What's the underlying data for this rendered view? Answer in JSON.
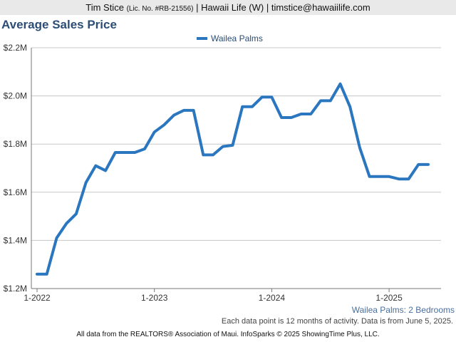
{
  "header": {
    "name": "Tim Stice",
    "license": "(Lic. No. #RB-21556)",
    "rest": "| Hawaii Life (W) | timstice@hawaiilife.com"
  },
  "chart_data": {
    "type": "line",
    "title": "Average Sales Price",
    "xlabel": "",
    "ylabel": "",
    "ylim": [
      1200000,
      2200000
    ],
    "yticks": [
      1200000,
      1400000,
      1600000,
      1800000,
      2000000,
      2200000
    ],
    "ytick_labels": [
      "$1.2M",
      "$1.4M",
      "$1.6M",
      "$1.8M",
      "$2.0M",
      "$2.2M"
    ],
    "xtick_labels": [
      "1-2022",
      "1-2023",
      "1-2024",
      "1-2025"
    ],
    "xtick_index": [
      0,
      12,
      24,
      36
    ],
    "grid": true,
    "legend": "top-center",
    "color": "#2a77c0",
    "x": [
      "1-2022",
      "2-2022",
      "3-2022",
      "4-2022",
      "5-2022",
      "6-2022",
      "7-2022",
      "8-2022",
      "9-2022",
      "10-2022",
      "11-2022",
      "12-2022",
      "1-2023",
      "2-2023",
      "3-2023",
      "4-2023",
      "5-2023",
      "6-2023",
      "7-2023",
      "8-2023",
      "9-2023",
      "10-2023",
      "11-2023",
      "12-2023",
      "1-2024",
      "2-2024",
      "3-2024",
      "4-2024",
      "5-2024",
      "6-2024",
      "7-2024",
      "8-2024",
      "9-2024",
      "10-2024",
      "11-2024",
      "12-2024",
      "1-2025",
      "2-2025",
      "3-2025",
      "4-2025",
      "5-2025"
    ],
    "series": [
      {
        "name": "Wailea Palms",
        "values": [
          1260000,
          1260000,
          1410000,
          1470000,
          1510000,
          1640000,
          1710000,
          1690000,
          1765000,
          1765000,
          1765000,
          1780000,
          1850000,
          1880000,
          1920000,
          1940000,
          1940000,
          1755000,
          1755000,
          1790000,
          1795000,
          1955000,
          1955000,
          1995000,
          1995000,
          1910000,
          1910000,
          1925000,
          1925000,
          1980000,
          1980000,
          2050000,
          1955000,
          1785000,
          1665000,
          1665000,
          1665000,
          1655000,
          1655000,
          1715000,
          1715000
        ]
      }
    ]
  },
  "subtitle": "Wailea Palms: 2 Bedrooms",
  "note": "Each data point is 12 months of activity. Data is from June 5, 2025.",
  "footer": "All data from the REALTORS® Association of Maui. InfoSparks © 2025 ShowingTime Plus, LLC."
}
